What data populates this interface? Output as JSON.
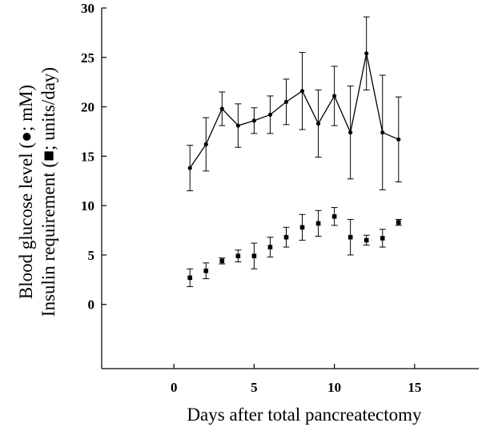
{
  "chart_data": {
    "type": "scatter",
    "title": "",
    "xlabel": "Days after total pancreatectomy",
    "ylabel": [
      "Blood glucose level (●; mM)",
      "Insulin requirement (■; units/day)"
    ],
    "ylabel_lines": {
      "line1": "Blood glucose level (●; mM)",
      "line2": "Insulin requirement (■; units/day)"
    },
    "xlim": [
      -4.5,
      19
    ],
    "ylim": [
      -6.5,
      30
    ],
    "x_ticks": [
      0,
      5,
      10,
      15
    ],
    "y_ticks": [
      0,
      5,
      10,
      15,
      20,
      25,
      30
    ],
    "x_tick_labels": [
      "0",
      "5",
      "10",
      "15"
    ],
    "y_tick_labels": [
      "0",
      "5",
      "10",
      "15",
      "20",
      "25",
      "30"
    ],
    "grid": false,
    "series": [
      {
        "marker": "circle",
        "line": true,
        "x": [
          1,
          2,
          3,
          4,
          5,
          6,
          7,
          8,
          9,
          10,
          11,
          12,
          13,
          14
        ],
        "y": [
          13.8,
          16.2,
          19.8,
          18.1,
          18.6,
          19.2,
          20.5,
          21.6,
          18.3,
          21.1,
          17.4,
          25.4,
          17.4,
          16.7
        ],
        "err": [
          2.3,
          2.7,
          1.7,
          2.2,
          1.3,
          1.9,
          2.3,
          3.9,
          3.4,
          3.0,
          4.7,
          3.7,
          5.8,
          4.3
        ]
      },
      {
        "marker": "square",
        "line": false,
        "x": [
          1,
          2,
          3,
          4,
          5,
          6,
          7,
          8,
          9,
          10,
          11,
          12,
          13,
          14
        ],
        "y": [
          2.7,
          3.4,
          4.4,
          4.9,
          4.9,
          5.8,
          6.8,
          7.8,
          8.2,
          8.9,
          6.8,
          6.5,
          6.7,
          8.3
        ],
        "err": [
          0.9,
          0.8,
          0.3,
          0.6,
          1.3,
          1.0,
          1.0,
          1.3,
          1.3,
          0.9,
          1.8,
          0.5,
          0.9,
          0.3
        ]
      }
    ]
  },
  "colors": {
    "ink": "#000000",
    "background": "#ffffff"
  }
}
